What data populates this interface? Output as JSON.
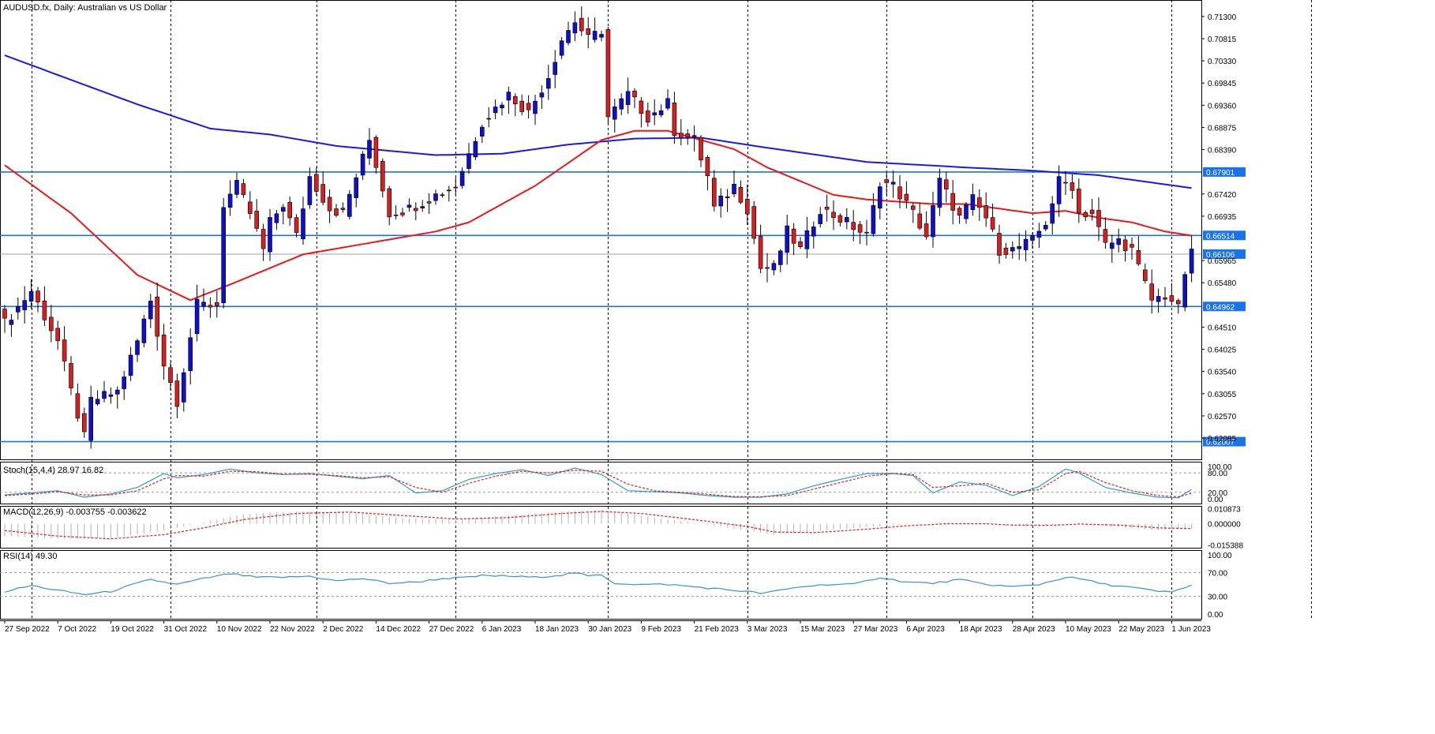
{
  "chart_data": {
    "type": "candlestick",
    "title": "AUDUSD.fx, Daily:  Australian vs US Dollar",
    "colors": {
      "bull": "#1010c8",
      "bear": "#d42020",
      "ma_long": "#1a1ae6",
      "ma_short": "#e61a1a",
      "level": "#1a73e8",
      "stoch_main": "#26a0c8",
      "stoch_signal": "#e61a1a",
      "macd_hist": "#b0b0b0",
      "macd_signal": "#e61a1a",
      "rsi": "#3a8fd6",
      "grid": "#000000",
      "price_line": "#a0a0a0"
    },
    "price_axis": {
      "ticks": [
        "0.71300",
        "0.70815",
        "0.70330",
        "0.69845",
        "0.69360",
        "0.68875",
        "0.68390",
        "0.67420",
        "0.66935",
        "0.65965",
        "0.65480",
        "0.64510",
        "0.64025",
        "0.63540",
        "0.63055",
        "0.62570",
        "0.62085"
      ],
      "ylim": [
        0.6162,
        0.7166
      ]
    },
    "levels": [
      {
        "label": "0.67901",
        "value": 0.67901
      },
      {
        "label": "0.66514",
        "value": 0.66514
      },
      {
        "label": "0.64962",
        "value": 0.64962
      },
      {
        "label": "0.62007",
        "value": 0.62007
      }
    ],
    "current_price": {
      "label": "0.66106",
      "value": 0.66106
    },
    "x_axis": {
      "labels": [
        "27 Sep 2022",
        "7 Oct 2022",
        "19 Oct 2022",
        "31 Oct 2022",
        "10 Nov 2022",
        "22 Nov 2022",
        "2 Dec 2022",
        "14 Dec 2022",
        "27 Dec 2022",
        "6 Jan 2023",
        "18 Jan 2023",
        "30 Jan 2023",
        "9 Feb 2023",
        "21 Feb 2023",
        "3 Mar 2023",
        "15 Mar 2023",
        "27 Mar 2023",
        "6 Apr 2023",
        "18 Apr 2023",
        "28 Apr 2023",
        "10 May 2023",
        "22 May 2023",
        "1 Jun 2023"
      ],
      "label_index": [
        0,
        8,
        16,
        24,
        32,
        40,
        48,
        56,
        64,
        72,
        80,
        88,
        96,
        104,
        112,
        120,
        128,
        136,
        144,
        152,
        160,
        168,
        176
      ],
      "grid_index": [
        4,
        25,
        47,
        68,
        91,
        112,
        133,
        155,
        176,
        197
      ]
    },
    "series": {
      "close_anchors": [
        [
          0,
          0.646
        ],
        [
          4,
          0.653
        ],
        [
          8,
          0.642
        ],
        [
          10,
          0.631
        ],
        [
          12,
          0.621
        ],
        [
          13,
          0.629
        ],
        [
          17,
          0.631
        ],
        [
          20,
          0.642
        ],
        [
          22,
          0.651
        ],
        [
          24,
          0.637
        ],
        [
          26,
          0.629
        ],
        [
          29,
          0.65
        ],
        [
          32,
          0.65
        ],
        [
          33,
          0.672
        ],
        [
          35,
          0.676
        ],
        [
          37,
          0.67
        ],
        [
          39,
          0.662
        ],
        [
          40,
          0.668
        ],
        [
          42,
          0.672
        ],
        [
          44,
          0.665
        ],
        [
          46,
          0.678
        ],
        [
          49,
          0.671
        ],
        [
          51,
          0.67
        ],
        [
          55,
          0.686
        ],
        [
          58,
          0.67
        ],
        [
          61,
          0.671
        ],
        [
          65,
          0.674
        ],
        [
          68,
          0.676
        ],
        [
          70,
          0.683
        ],
        [
          72,
          0.69
        ],
        [
          76,
          0.696
        ],
        [
          79,
          0.692
        ],
        [
          82,
          0.7
        ],
        [
          84,
          0.708
        ],
        [
          86,
          0.712
        ],
        [
          88,
          0.708
        ],
        [
          90,
          0.71
        ],
        [
          91,
          0.691
        ],
        [
          94,
          0.696
        ],
        [
          97,
          0.691
        ],
        [
          100,
          0.694
        ],
        [
          101,
          0.688
        ],
        [
          104,
          0.686
        ],
        [
          106,
          0.678
        ],
        [
          107,
          0.671
        ],
        [
          110,
          0.676
        ],
        [
          112,
          0.671
        ],
        [
          114,
          0.658
        ],
        [
          116,
          0.658
        ],
        [
          118,
          0.666
        ],
        [
          120,
          0.662
        ],
        [
          123,
          0.671
        ],
        [
          127,
          0.668
        ],
        [
          130,
          0.665
        ],
        [
          132,
          0.677
        ],
        [
          134,
          0.676
        ],
        [
          137,
          0.67
        ],
        [
          139,
          0.665
        ],
        [
          141,
          0.677
        ],
        [
          144,
          0.669
        ],
        [
          146,
          0.673
        ],
        [
          148,
          0.669
        ],
        [
          150,
          0.662
        ],
        [
          152,
          0.662
        ],
        [
          155,
          0.664
        ],
        [
          157,
          0.668
        ],
        [
          159,
          0.677
        ],
        [
          161,
          0.676
        ],
        [
          162,
          0.67
        ],
        [
          164,
          0.67
        ],
        [
          166,
          0.663
        ],
        [
          168,
          0.664
        ],
        [
          170,
          0.662
        ],
        [
          171,
          0.658
        ],
        [
          173,
          0.651
        ],
        [
          175,
          0.652
        ],
        [
          176,
          0.651
        ],
        [
          177,
          0.649
        ],
        [
          178,
          0.657
        ],
        [
          179,
          0.661
        ]
      ],
      "ma_long_anchors": [
        [
          0,
          0.7045
        ],
        [
          20,
          0.6938
        ],
        [
          31,
          0.6885
        ],
        [
          40,
          0.6872
        ],
        [
          50,
          0.6847
        ],
        [
          65,
          0.6827
        ],
        [
          75,
          0.683
        ],
        [
          85,
          0.685
        ],
        [
          95,
          0.6863
        ],
        [
          105,
          0.6865
        ],
        [
          115,
          0.6843
        ],
        [
          130,
          0.6812
        ],
        [
          145,
          0.68
        ],
        [
          155,
          0.6793
        ],
        [
          165,
          0.6783
        ],
        [
          174,
          0.6765
        ],
        [
          179,
          0.6755
        ]
      ],
      "ma_short_anchors": [
        [
          0,
          0.6805
        ],
        [
          10,
          0.67
        ],
        [
          20,
          0.6565
        ],
        [
          28,
          0.651
        ],
        [
          35,
          0.655
        ],
        [
          45,
          0.661
        ],
        [
          55,
          0.6635
        ],
        [
          65,
          0.666
        ],
        [
          70,
          0.668
        ],
        [
          80,
          0.676
        ],
        [
          90,
          0.686
        ],
        [
          95,
          0.688
        ],
        [
          100,
          0.688
        ],
        [
          105,
          0.686
        ],
        [
          110,
          0.684
        ],
        [
          115,
          0.68
        ],
        [
          120,
          0.677
        ],
        [
          125,
          0.674
        ],
        [
          130,
          0.673
        ],
        [
          140,
          0.672
        ],
        [
          145,
          0.672
        ],
        [
          150,
          0.671
        ],
        [
          155,
          0.67
        ],
        [
          160,
          0.6705
        ],
        [
          165,
          0.669
        ],
        [
          170,
          0.668
        ],
        [
          175,
          0.666
        ],
        [
          179,
          0.6651
        ]
      ]
    },
    "stochastic": {
      "label": "Stoch(15,4,4) 28.97 16.82",
      "ticks": [
        "100.00",
        "80.00",
        "20.00",
        "0.00"
      ],
      "levels": [
        80,
        20
      ],
      "main_anchors": [
        [
          0,
          12
        ],
        [
          5,
          20
        ],
        [
          8,
          25
        ],
        [
          12,
          5
        ],
        [
          16,
          15
        ],
        [
          20,
          35
        ],
        [
          24,
          78
        ],
        [
          26,
          65
        ],
        [
          30,
          75
        ],
        [
          34,
          92
        ],
        [
          38,
          80
        ],
        [
          42,
          75
        ],
        [
          46,
          78
        ],
        [
          50,
          70
        ],
        [
          54,
          62
        ],
        [
          58,
          72
        ],
        [
          62,
          18
        ],
        [
          66,
          25
        ],
        [
          70,
          60
        ],
        [
          74,
          78
        ],
        [
          78,
          90
        ],
        [
          82,
          72
        ],
        [
          86,
          95
        ],
        [
          90,
          75
        ],
        [
          94,
          25
        ],
        [
          98,
          22
        ],
        [
          102,
          18
        ],
        [
          106,
          10
        ],
        [
          110,
          5
        ],
        [
          114,
          5
        ],
        [
          118,
          15
        ],
        [
          122,
          40
        ],
        [
          126,
          60
        ],
        [
          130,
          78
        ],
        [
          134,
          78
        ],
        [
          137,
          72
        ],
        [
          140,
          18
        ],
        [
          144,
          52
        ],
        [
          148,
          42
        ],
        [
          152,
          10
        ],
        [
          156,
          38
        ],
        [
          160,
          92
        ],
        [
          162,
          80
        ],
        [
          166,
          35
        ],
        [
          170,
          18
        ],
        [
          174,
          5
        ],
        [
          177,
          3
        ],
        [
          179,
          29
        ]
      ],
      "signal_anchors": [
        [
          0,
          10
        ],
        [
          5,
          16
        ],
        [
          8,
          22
        ],
        [
          12,
          12
        ],
        [
          16,
          12
        ],
        [
          20,
          25
        ],
        [
          24,
          62
        ],
        [
          26,
          72
        ],
        [
          30,
          70
        ],
        [
          34,
          85
        ],
        [
          38,
          84
        ],
        [
          42,
          76
        ],
        [
          46,
          76
        ],
        [
          50,
          72
        ],
        [
          54,
          65
        ],
        [
          58,
          68
        ],
        [
          62,
          35
        ],
        [
          66,
          20
        ],
        [
          70,
          48
        ],
        [
          74,
          70
        ],
        [
          78,
          85
        ],
        [
          82,
          80
        ],
        [
          86,
          88
        ],
        [
          90,
          85
        ],
        [
          94,
          45
        ],
        [
          98,
          25
        ],
        [
          102,
          20
        ],
        [
          106,
          14
        ],
        [
          110,
          7
        ],
        [
          114,
          6
        ],
        [
          118,
          10
        ],
        [
          122,
          30
        ],
        [
          126,
          50
        ],
        [
          130,
          70
        ],
        [
          134,
          78
        ],
        [
          137,
          75
        ],
        [
          140,
          35
        ],
        [
          144,
          40
        ],
        [
          148,
          48
        ],
        [
          152,
          20
        ],
        [
          156,
          28
        ],
        [
          160,
          78
        ],
        [
          162,
          85
        ],
        [
          166,
          50
        ],
        [
          170,
          25
        ],
        [
          174,
          10
        ],
        [
          177,
          6
        ],
        [
          179,
          17
        ]
      ]
    },
    "macd": {
      "label": "MACD(12,26,9) -0.003755 -0.003622",
      "ticks": [
        "0.010873",
        "0.000000",
        "-0.015388"
      ],
      "ylim": [
        -0.0175,
        0.013
      ],
      "hist_anchors": [
        [
          0,
          -0.009
        ],
        [
          8,
          -0.011
        ],
        [
          16,
          -0.0105
        ],
        [
          24,
          -0.005
        ],
        [
          30,
          0.001
        ],
        [
          36,
          0.007
        ],
        [
          44,
          0.009
        ],
        [
          52,
          0.008
        ],
        [
          60,
          0.004
        ],
        [
          68,
          0.003
        ],
        [
          76,
          0.006
        ],
        [
          84,
          0.009
        ],
        [
          90,
          0.01
        ],
        [
          96,
          0.006
        ],
        [
          104,
          0.0005
        ],
        [
          112,
          -0.005
        ],
        [
          116,
          -0.008
        ],
        [
          122,
          -0.0055
        ],
        [
          130,
          -0.0025
        ],
        [
          136,
          -0.0005
        ],
        [
          142,
          0.0005
        ],
        [
          148,
          -0.0005
        ],
        [
          152,
          -0.002
        ],
        [
          158,
          -0.001
        ],
        [
          162,
          0.0005
        ],
        [
          168,
          -0.0025
        ],
        [
          174,
          -0.0045
        ],
        [
          179,
          -0.0037
        ]
      ],
      "signal_anchors": [
        [
          0,
          -0.005
        ],
        [
          8,
          -0.009
        ],
        [
          16,
          -0.011
        ],
        [
          24,
          -0.008
        ],
        [
          30,
          -0.003
        ],
        [
          36,
          0.003
        ],
        [
          44,
          0.0075
        ],
        [
          52,
          0.0085
        ],
        [
          60,
          0.006
        ],
        [
          68,
          0.0035
        ],
        [
          76,
          0.0045
        ],
        [
          84,
          0.0075
        ],
        [
          90,
          0.009
        ],
        [
          96,
          0.0075
        ],
        [
          104,
          0.003
        ],
        [
          112,
          -0.002
        ],
        [
          116,
          -0.006
        ],
        [
          122,
          -0.0065
        ],
        [
          130,
          -0.004
        ],
        [
          136,
          -0.0015
        ],
        [
          142,
          0.0
        ],
        [
          148,
          0.0
        ],
        [
          152,
          -0.001
        ],
        [
          158,
          -0.0012
        ],
        [
          162,
          -0.0002
        ],
        [
          168,
          -0.001
        ],
        [
          174,
          -0.003
        ],
        [
          179,
          -0.0036
        ]
      ]
    },
    "rsi": {
      "label": "RSI(14) 49.30",
      "ticks": [
        "100.00",
        "70.00",
        "30.00",
        "0.00"
      ],
      "levels": [
        70,
        30
      ],
      "anchors": [
        [
          0,
          38
        ],
        [
          4,
          48
        ],
        [
          8,
          40
        ],
        [
          12,
          33
        ],
        [
          16,
          38
        ],
        [
          20,
          52
        ],
        [
          22,
          58
        ],
        [
          26,
          50
        ],
        [
          30,
          60
        ],
        [
          34,
          68
        ],
        [
          38,
          62
        ],
        [
          42,
          62
        ],
        [
          46,
          64
        ],
        [
          50,
          56
        ],
        [
          54,
          60
        ],
        [
          58,
          52
        ],
        [
          62,
          54
        ],
        [
          66,
          60
        ],
        [
          70,
          62
        ],
        [
          72,
          65
        ],
        [
          76,
          64
        ],
        [
          80,
          62
        ],
        [
          84,
          66
        ],
        [
          86,
          70
        ],
        [
          88,
          64
        ],
        [
          90,
          66
        ],
        [
          92,
          52
        ],
        [
          96,
          50
        ],
        [
          100,
          50
        ],
        [
          104,
          46
        ],
        [
          108,
          42
        ],
        [
          112,
          38
        ],
        [
          114,
          35
        ],
        [
          116,
          38
        ],
        [
          120,
          46
        ],
        [
          124,
          50
        ],
        [
          128,
          50
        ],
        [
          132,
          62
        ],
        [
          136,
          54
        ],
        [
          140,
          52
        ],
        [
          144,
          58
        ],
        [
          148,
          50
        ],
        [
          152,
          46
        ],
        [
          156,
          50
        ],
        [
          160,
          62
        ],
        [
          162,
          60
        ],
        [
          166,
          50
        ],
        [
          170,
          45
        ],
        [
          174,
          38
        ],
        [
          176,
          37
        ],
        [
          179,
          49
        ]
      ]
    }
  }
}
